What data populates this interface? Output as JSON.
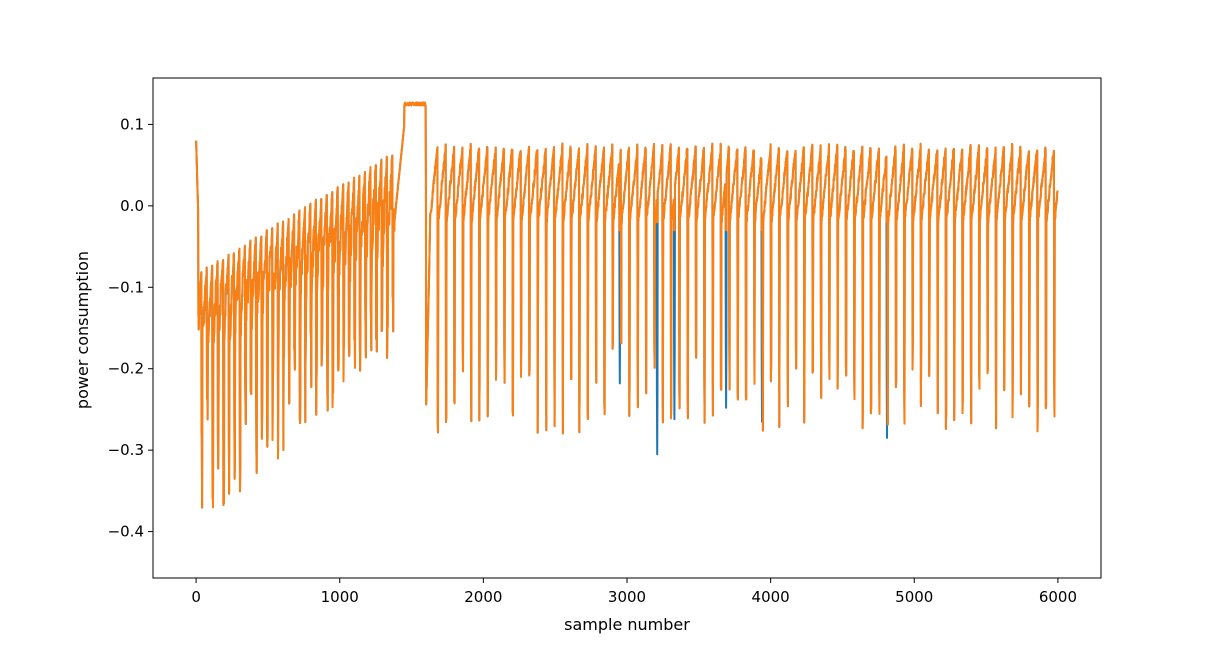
{
  "chart_data": {
    "type": "line",
    "title": "",
    "xlabel": "sample number",
    "ylabel": "power consumption",
    "xlim": [
      -300,
      6300
    ],
    "ylim": [
      -0.457,
      0.157
    ],
    "xticks": [
      0,
      1000,
      2000,
      3000,
      4000,
      5000,
      6000
    ],
    "xtick_labels": [
      "0",
      "1000",
      "2000",
      "3000",
      "4000",
      "5000",
      "6000"
    ],
    "yticks": [
      -0.4,
      -0.3,
      -0.2,
      -0.1,
      0.0,
      0.1
    ],
    "ytick_labels": [
      "−0.4",
      "−0.3",
      "−0.2",
      "−0.1",
      "0.0",
      "0.1"
    ],
    "grid": false,
    "legend": "none",
    "series": [
      {
        "color": "#1f77b4"
      },
      {
        "color": "#ff7f0e"
      }
    ],
    "sample_count": 6000,
    "profile": {
      "start_value": 0.08,
      "early_min": -0.43,
      "plateau_start": 1450,
      "plateau_end": 1600,
      "plateau_value": 0.127,
      "steady_high": 0.075,
      "steady_low": -0.04,
      "deep_dip_min": -0.305
    },
    "divergent_dips": [
      {
        "x": 3210,
        "blue": -0.305,
        "orange": -0.02
      },
      {
        "x": 3330,
        "blue": -0.262,
        "orange": -0.03
      },
      {
        "x": 3940,
        "blue": -0.265,
        "orange": -0.03
      },
      {
        "x": 4810,
        "blue": -0.285,
        "orange": -0.02
      },
      {
        "x": 2950,
        "blue": -0.218,
        "orange": -0.03
      },
      {
        "x": 3690,
        "blue": -0.248,
        "orange": -0.03
      }
    ]
  }
}
